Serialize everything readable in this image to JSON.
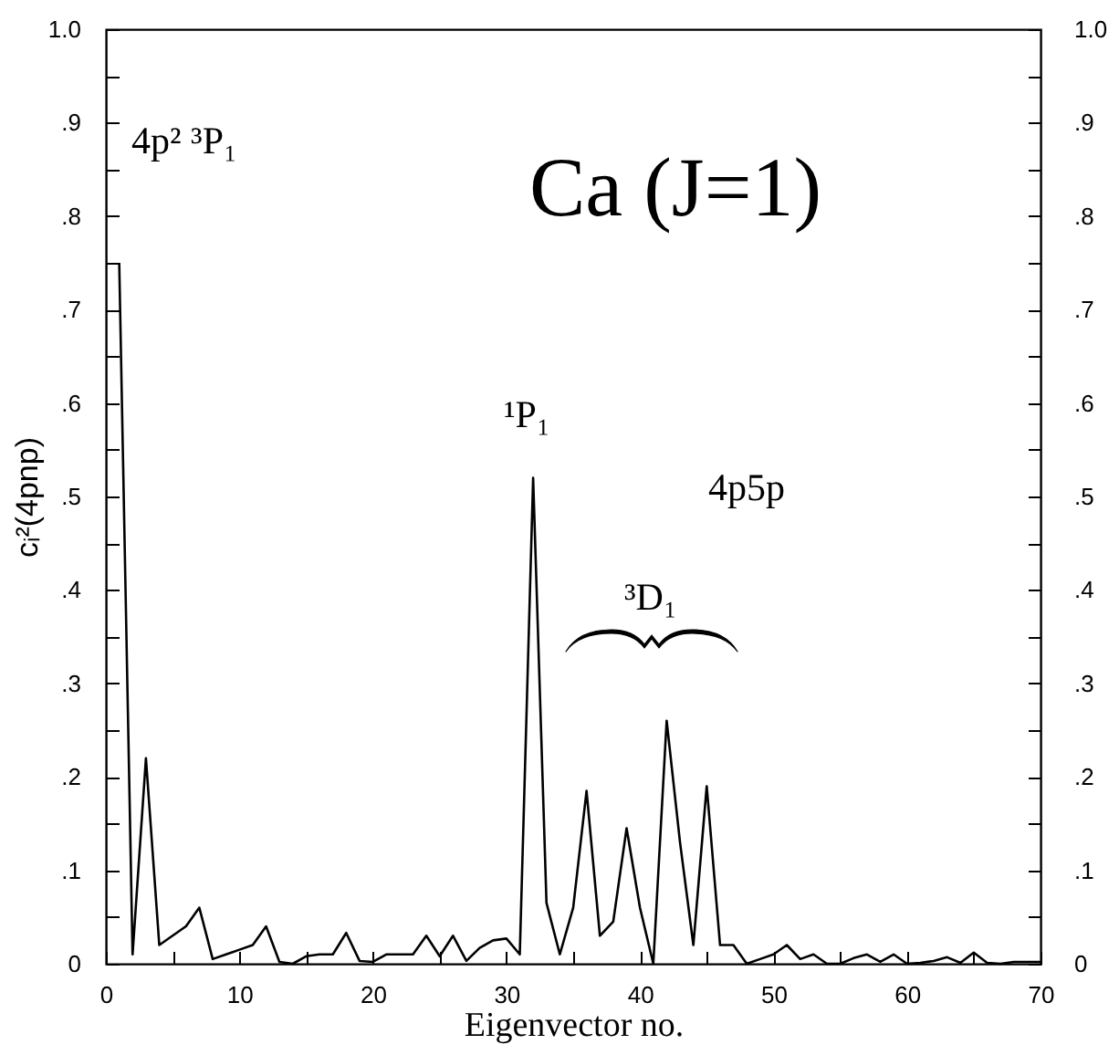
{
  "chart_data": {
    "type": "line",
    "title": "Ca (J=1)",
    "xlabel": "Eigenvector no.",
    "ylabel": "cᵢ²(4pnp)",
    "x": [
      1,
      2,
      3,
      4,
      5,
      6,
      7,
      8,
      9,
      10,
      11,
      12,
      13,
      14,
      15,
      16,
      17,
      18,
      19,
      20,
      21,
      22,
      23,
      24,
      25,
      26,
      27,
      28,
      29,
      30,
      31,
      32,
      33,
      34,
      35,
      36,
      37,
      38,
      39,
      40,
      41,
      42,
      43,
      44,
      45,
      46,
      47,
      48,
      49,
      50,
      51,
      52,
      53,
      54,
      55,
      56,
      57,
      58,
      59,
      60,
      61,
      62,
      63,
      64,
      65,
      66,
      67,
      68,
      69,
      70
    ],
    "series": [
      {
        "color": "#000000",
        "values": [
          0.75,
          0.01,
          0.22,
          0.02,
          0.03,
          0.04,
          0.06,
          0.005,
          0.01,
          0.015,
          0.02,
          0.04,
          0.002,
          0,
          0.008,
          0.01,
          0.01,
          0.033,
          0.003,
          0.002,
          0.01,
          0.01,
          0.01,
          0.03,
          0.008,
          0.03,
          0.003,
          0.017,
          0.025,
          0.027,
          0.01,
          0.52,
          0.065,
          0.01,
          0.06,
          0.185,
          0.03,
          0.045,
          0.145,
          0.06,
          0,
          0.26,
          0.13,
          0.02,
          0.19,
          0.02,
          0.02,
          0,
          0.005,
          0.01,
          0.02,
          0.005,
          0.01,
          0,
          0,
          0.006,
          0.01,
          0.002,
          0.01,
          0,
          0.001,
          0.003,
          0.007,
          0.001,
          0.012,
          0.001,
          0,
          0.002,
          0.002,
          0.002
        ]
      }
    ],
    "xlim": [
      0,
      70
    ],
    "xticks": [
      0,
      {
        "value": 5,
        "label": null
      },
      10,
      {
        "value": 15,
        "label": null
      },
      20,
      {
        "value": 25,
        "label": null
      },
      30,
      {
        "value": 35,
        "label": null
      },
      40,
      {
        "value": 45,
        "label": null
      },
      50,
      {
        "value": 55,
        "label": null
      },
      60,
      {
        "value": 65,
        "label": null
      },
      70
    ],
    "ylim": [
      0,
      1
    ],
    "yticks": [
      0,
      {
        "value": 0.05,
        "label": null
      },
      {
        "value": 0.1,
        "label": ".1"
      },
      {
        "value": 0.15,
        "label": null
      },
      {
        "value": 0.2,
        "label": ".2"
      },
      {
        "value": 0.25,
        "label": null
      },
      {
        "value": 0.3,
        "label": ".3"
      },
      {
        "value": 0.35,
        "label": null
      },
      {
        "value": 0.4,
        "label": ".4"
      },
      {
        "value": 0.45,
        "label": null
      },
      {
        "value": 0.5,
        "label": ".5"
      },
      {
        "value": 0.55,
        "label": null
      },
      {
        "value": 0.6,
        "label": ".6"
      },
      {
        "value": 0.65,
        "label": null
      },
      {
        "value": 0.7,
        "label": ".7"
      },
      {
        "value": 0.75,
        "label": null
      },
      {
        "value": 0.8,
        "label": ".8"
      },
      {
        "value": 0.85,
        "label": null
      },
      {
        "value": 0.9,
        "label": ".9"
      },
      {
        "value": 0.95,
        "label": null
      },
      {
        "value": 1,
        "label": "1.0"
      }
    ],
    "y2lim": [
      0,
      1
    ],
    "y2ticks": [
      0,
      {
        "value": 0.05,
        "label": null
      },
      {
        "value": 0.1,
        "label": ".1"
      },
      {
        "value": 0.15,
        "label": null
      },
      {
        "value": 0.2,
        "label": ".2"
      },
      {
        "value": 0.25,
        "label": null
      },
      {
        "value": 0.3,
        "label": ".3"
      },
      {
        "value": 0.35,
        "label": null
      },
      {
        "value": 0.4,
        "label": ".4"
      },
      {
        "value": 0.45,
        "label": null
      },
      {
        "value": 0.5,
        "label": ".5"
      },
      {
        "value": 0.55,
        "label": null
      },
      {
        "value": 0.6,
        "label": ".6"
      },
      {
        "value": 0.65,
        "label": null
      },
      {
        "value": 0.7,
        "label": ".7"
      },
      {
        "value": 0.75,
        "label": null
      },
      {
        "value": 0.8,
        "label": ".8"
      },
      {
        "value": 0.85,
        "label": null
      },
      {
        "value": 0.9,
        "label": ".9"
      },
      {
        "value": 0.95,
        "label": null
      },
      {
        "value": 1,
        "label": "1.0"
      }
    ],
    "annotations": [
      "4p² ³P₁",
      "¹P₁",
      "4p5p",
      "³D₁"
    ],
    "grid": false,
    "marker": "none",
    "line_style": "solid"
  }
}
